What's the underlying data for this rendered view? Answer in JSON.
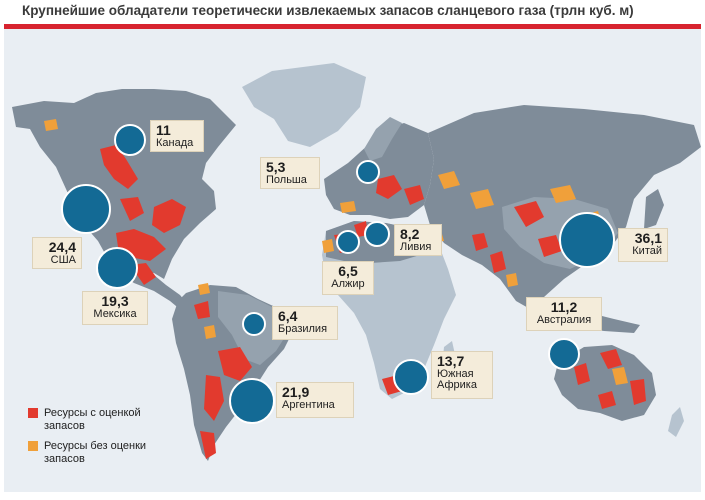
{
  "title": "Крупнейшие обладатели теоретически извлекаемых запасов сланцевого газа (трлн куб. м)",
  "colors": {
    "accent_red": "#d7242f",
    "assessed": "#e23a2e",
    "unassessed": "#f0a03a",
    "bubble": "#136a95",
    "country_dark": "#7f8c99",
    "country_light": "#b6c3cf",
    "ocean": "#e9eef3"
  },
  "countries": [
    {
      "id": "canada",
      "name": "Канада",
      "value": "11"
    },
    {
      "id": "usa",
      "name": "США",
      "value": "24,4"
    },
    {
      "id": "mexico",
      "name": "Мексика",
      "value": "19,3"
    },
    {
      "id": "poland",
      "name": "Польша",
      "value": "5,3"
    },
    {
      "id": "libya",
      "name": "Ливия",
      "value": "8,2"
    },
    {
      "id": "algeria",
      "name": "Алжир",
      "value": "6,5"
    },
    {
      "id": "china",
      "name": "Китай",
      "value": "36,1"
    },
    {
      "id": "australia",
      "name": "Австралия",
      "value": "11,2"
    },
    {
      "id": "brazil",
      "name": "Бразилия",
      "value": "6,4"
    },
    {
      "id": "argentina",
      "name": "Аргентина",
      "value": "21,9"
    },
    {
      "id": "south_africa",
      "name": "Южная Африка",
      "value": "13,7"
    }
  ],
  "legend": {
    "assessed": "Ресурсы с оценкой запасов",
    "unassessed": "Ресурсы без оценки запасов"
  }
}
